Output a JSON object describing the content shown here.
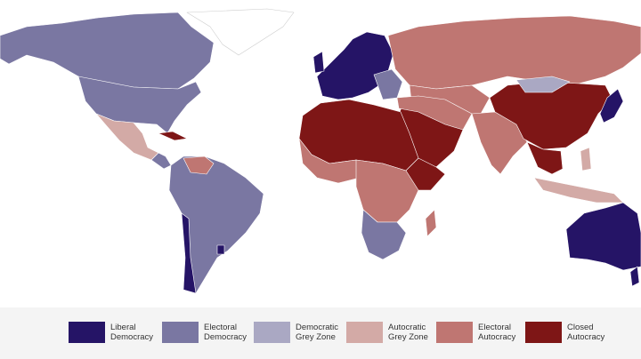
{
  "legend": {
    "items": [
      {
        "label": "Liberal Democracy",
        "color": "#251466"
      },
      {
        "label": "Electoral Democracy",
        "color": "#7a77a2"
      },
      {
        "label": "Democratic Grey Zone",
        "color": "#aaa8c3"
      },
      {
        "label": "Autocratic Grey Zone",
        "color": "#d3aaa6"
      },
      {
        "label": "Electoral Autocracy",
        "color": "#bf7672"
      },
      {
        "label": "Closed Autocracy",
        "color": "#7e1616"
      }
    ]
  }
}
